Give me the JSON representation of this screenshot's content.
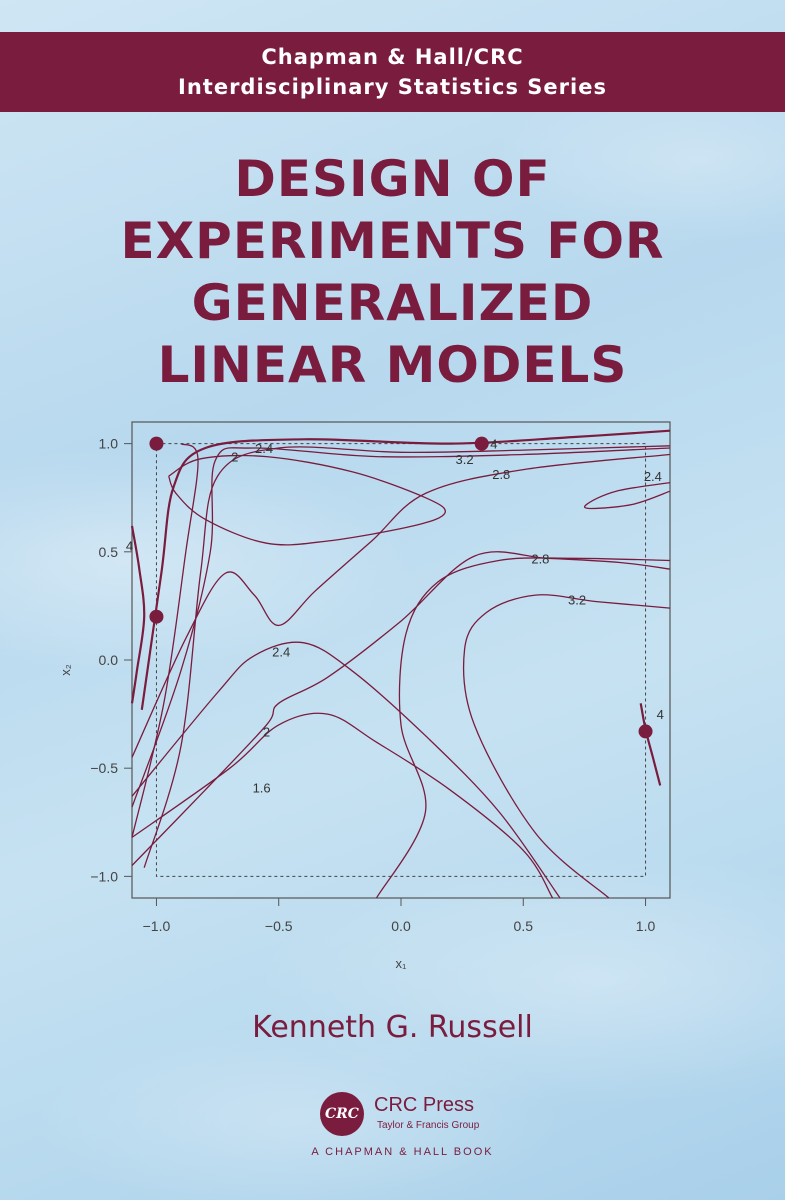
{
  "series_banner": {
    "line1": "Chapman & Hall/CRC",
    "line2": "Interdisciplinary Statistics Series"
  },
  "title_lines": [
    "DESIGN OF",
    "EXPERIMENTS FOR",
    "GENERALIZED",
    "LINEAR MODELS"
  ],
  "author": "Kenneth G. Russell",
  "publisher": {
    "logo_text": "CRC",
    "name": "CRC Press",
    "subtitle": "Taylor & Francis Group",
    "imprint": "A CHAPMAN & HALL BOOK"
  },
  "colors": {
    "brand": "#7a1c3e",
    "sky_light": "#cfe6f4",
    "sky_dark": "#a9d0ea"
  },
  "chart_data": {
    "type": "contour",
    "xlabel": "x₁",
    "ylabel": "x₂",
    "xlim": [
      -1.1,
      1.1
    ],
    "ylim": [
      -1.1,
      1.1
    ],
    "x_ticks": [
      "−1.0",
      "−0.5",
      "0.0",
      "0.5",
      "1.0"
    ],
    "x_tick_values": [
      -1.0,
      -0.5,
      0.0,
      0.5,
      1.0
    ],
    "y_ticks": [
      "1.0",
      "0.5",
      "0.0",
      "−0.5",
      "−1.0"
    ],
    "y_tick_values": [
      1.0,
      0.5,
      0.0,
      -0.5,
      -1.0
    ],
    "design_region": {
      "x": [
        -1.0,
        1.0
      ],
      "y": [
        -1.0,
        1.0
      ]
    },
    "design_points": [
      {
        "x": -1.0,
        "y": 1.0
      },
      {
        "x": 0.33,
        "y": 1.0
      },
      {
        "x": -1.0,
        "y": 0.2
      },
      {
        "x": 1.0,
        "y": -0.33
      }
    ],
    "contour_labels": [
      {
        "text": "2",
        "x": -0.68,
        "y": 0.94
      },
      {
        "text": "2.4",
        "x": -0.56,
        "y": 0.98
      },
      {
        "text": "3.2",
        "x": 0.26,
        "y": 0.93
      },
      {
        "text": "4",
        "x": 0.38,
        "y": 1.0
      },
      {
        "text": "2.8",
        "x": 0.41,
        "y": 0.86
      },
      {
        "text": "2.4",
        "x": 1.03,
        "y": 0.85
      },
      {
        "text": "4",
        "x": -1.11,
        "y": 0.53
      },
      {
        "text": "2.8",
        "x": 0.57,
        "y": 0.47
      },
      {
        "text": "3.2",
        "x": 0.72,
        "y": 0.28
      },
      {
        "text": "2.4",
        "x": -0.49,
        "y": 0.04
      },
      {
        "text": "2",
        "x": -0.55,
        "y": -0.33
      },
      {
        "text": "1.6",
        "x": -0.57,
        "y": -0.59
      },
      {
        "text": "4",
        "x": 1.06,
        "y": -0.25
      }
    ]
  }
}
